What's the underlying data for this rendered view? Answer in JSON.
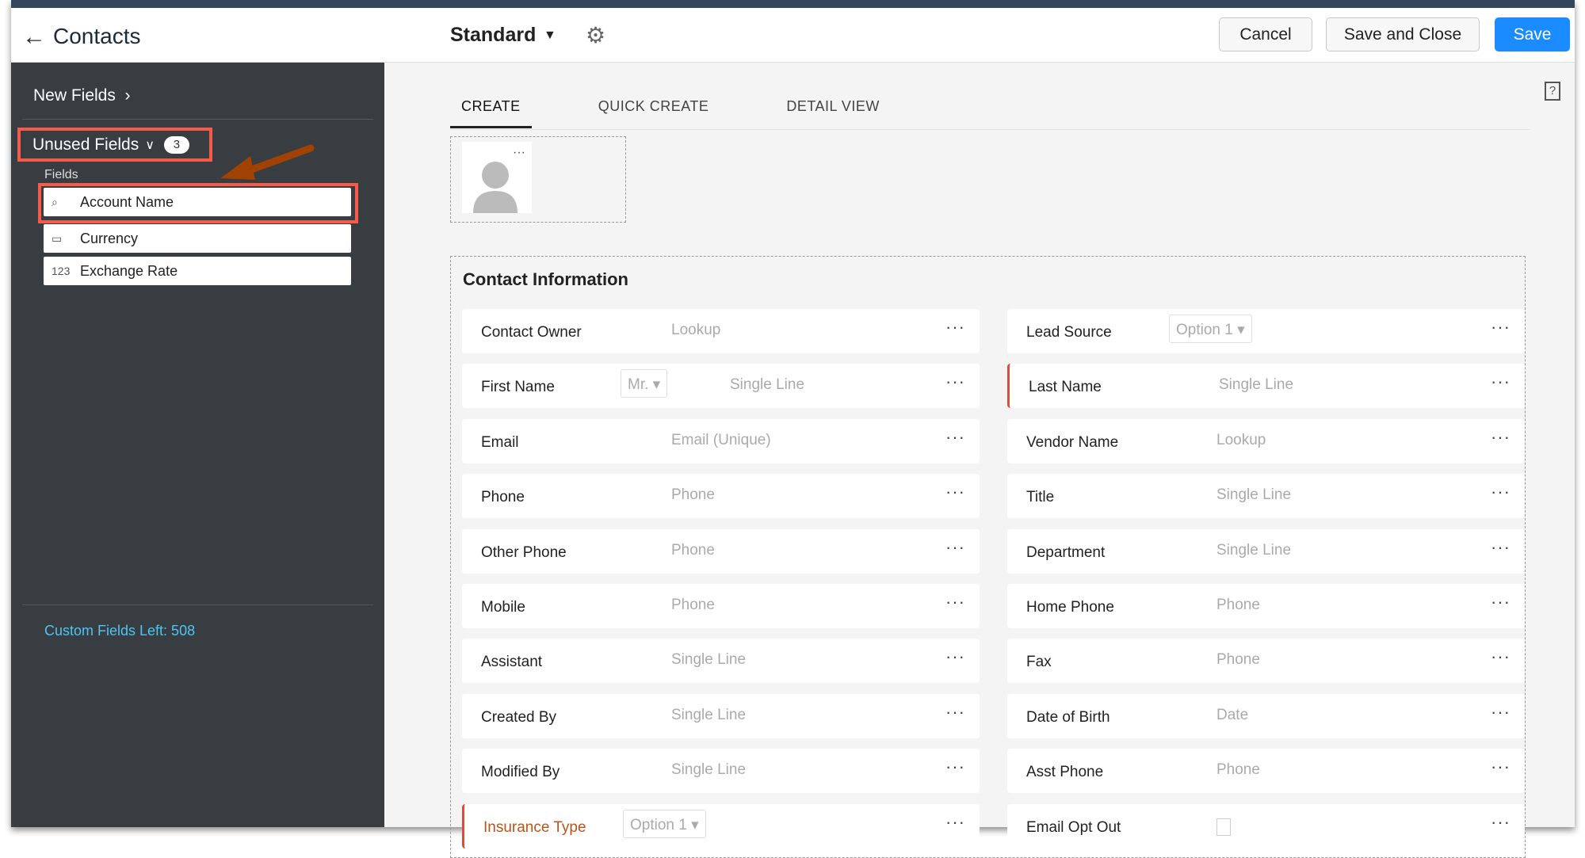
{
  "header": {
    "back_icon": "arrow-left-icon",
    "title": "Contacts",
    "layout": "Standard",
    "cancel": "Cancel",
    "save_close": "Save and Close",
    "save": "Save"
  },
  "sidebar": {
    "new_fields": "New Fields",
    "unused_fields": "Unused Fields",
    "unused_count": "3",
    "fields_label": "Fields",
    "items": [
      {
        "icon": "lookup-icon",
        "glyph": "⌕",
        "label": "Account Name"
      },
      {
        "icon": "currency-icon",
        "glyph": "▭",
        "label": "Currency"
      },
      {
        "icon": "number-icon",
        "glyph": "123",
        "label": "Exchange Rate"
      }
    ],
    "custom_fields_left": "Custom Fields Left: 508"
  },
  "tabs": [
    "CREATE",
    "QUICK CREATE",
    "DETAIL VIEW"
  ],
  "section": {
    "title": "Contact Information",
    "rows": [
      [
        {
          "label": "Contact Owner",
          "ph": "Lookup"
        },
        {
          "label": "Lead Source",
          "select": "Option 1 ▾"
        }
      ],
      [
        {
          "label": "First Name",
          "select": "Mr. ▾",
          "ph": "Single Line"
        },
        {
          "label": "Last Name",
          "ph": "Single Line",
          "required": true
        }
      ],
      [
        {
          "label": "Email",
          "ph": "Email (Unique)"
        },
        {
          "label": "Vendor Name",
          "ph": "Lookup"
        }
      ],
      [
        {
          "label": "Phone",
          "ph": "Phone"
        },
        {
          "label": "Title",
          "ph": "Single Line"
        }
      ],
      [
        {
          "label": "Other Phone",
          "ph": "Phone"
        },
        {
          "label": "Department",
          "ph": "Single Line"
        }
      ],
      [
        {
          "label": "Mobile",
          "ph": "Phone"
        },
        {
          "label": "Home Phone",
          "ph": "Phone"
        }
      ],
      [
        {
          "label": "Assistant",
          "ph": "Single Line"
        },
        {
          "label": "Fax",
          "ph": "Phone"
        }
      ],
      [
        {
          "label": "Created By",
          "ph": "Single Line"
        },
        {
          "label": "Date of Birth",
          "ph": "Date"
        }
      ],
      [
        {
          "label": "Modified By",
          "ph": "Single Line"
        },
        {
          "label": "Asst Phone",
          "ph": "Phone"
        }
      ],
      [
        {
          "label": "Insurance Type",
          "select": "Option 1 ▾",
          "required": true,
          "labelColor": "#b5551a"
        },
        {
          "label": "Email Opt Out",
          "checkbox": true
        }
      ]
    ]
  },
  "colors": {
    "accent": "#1a8cff",
    "highlight": "#f45b4d",
    "sidebar": "#373d41",
    "link": "#52c3f1"
  }
}
